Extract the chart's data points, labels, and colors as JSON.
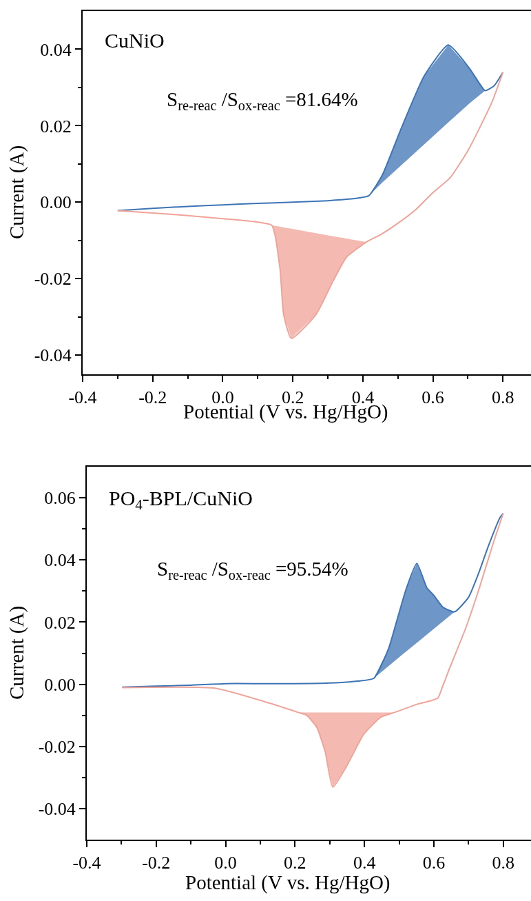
{
  "chart_data": [
    {
      "type": "line",
      "xlabel": "Potential (V vs. Hg/HgO)",
      "ylabel": "Current (A)",
      "annotations": [
        "CuNiO",
        "S$_{re-reac}$ /S$_{ox-reac}$ =81.64%"
      ],
      "xlim": [
        -0.4,
        0.88
      ],
      "ylim": [
        -0.045,
        0.05
      ],
      "xticks": [
        -0.4,
        -0.2,
        {
          "value": 0,
          "label": "0.0"
        },
        0.2,
        0.4,
        0.6,
        0.8,
        {
          "value": -0.3,
          "label": null
        },
        {
          "value": -0.1,
          "label": null
        },
        {
          "value": 0.1,
          "label": null
        },
        {
          "value": 0.3,
          "label": null
        },
        {
          "value": 0.5,
          "label": null
        },
        {
          "value": 0.7,
          "label": null
        }
      ],
      "yticks": [
        -0.04,
        -0.02,
        {
          "value": 0,
          "label": "0.00"
        },
        0.02,
        0.04,
        {
          "value": -0.03,
          "label": null
        },
        {
          "value": -0.01,
          "label": null
        },
        {
          "value": 0.01,
          "label": null
        },
        {
          "value": 0.03,
          "label": null
        }
      ],
      "marker": "none",
      "line_style": "solid",
      "series": [
        {
          "color": "#3d74b6",
          "x": [
            -0.3,
            -0.2,
            -0.1,
            0.0,
            0.1,
            0.2,
            0.3,
            0.38,
            0.417,
            0.456,
            0.509,
            0.575,
            0.644,
            0.706,
            0.749,
            0.775,
            0.8
          ],
          "values": [
            -0.0022,
            -0.0016,
            -0.0011,
            -0.0007,
            -0.0003,
            0.0,
            0.0004,
            0.001,
            0.0017,
            0.0072,
            0.0192,
            0.033,
            0.0411,
            0.0348,
            0.0292,
            0.0305,
            0.034
          ],
          "lower": [
            null,
            null,
            null,
            null,
            null,
            null,
            null,
            null,
            0.0017,
            0.0052,
            0.0096,
            0.0151,
            0.0209,
            0.026,
            0.0292,
            null,
            null
          ],
          "upper": [
            null,
            null,
            null,
            null,
            null,
            null,
            null,
            null,
            0.0017,
            0.0072,
            0.0192,
            0.033,
            0.0411,
            0.0348,
            0.0292,
            null,
            null
          ]
        },
        {
          "color": "#f0a398",
          "x": [
            0.8,
            0.77,
            0.732,
            0.7,
            0.65,
            0.6,
            0.55,
            0.5,
            0.45,
            0.41,
            0.353,
            0.315,
            0.266,
            0.196,
            0.174,
            0.164,
            0.15,
            0.14,
            0.1,
            0.0,
            -0.1,
            -0.2,
            -0.3
          ],
          "values": [
            0.034,
            0.0265,
            0.0192,
            0.0135,
            0.0065,
            0.0025,
            -0.002,
            -0.0055,
            -0.0085,
            -0.0104,
            -0.0144,
            -0.0206,
            -0.0294,
            -0.0356,
            -0.0294,
            -0.0178,
            -0.0089,
            -0.006,
            -0.0052,
            -0.0043,
            -0.0035,
            -0.0028,
            -0.0022
          ],
          "lower": [
            null,
            null,
            null,
            null,
            null,
            null,
            null,
            null,
            null,
            -0.0104,
            -0.0144,
            -0.0206,
            -0.0294,
            -0.0356,
            -0.0294,
            -0.0178,
            -0.0089,
            -0.006,
            null,
            null,
            null,
            null,
            null
          ],
          "upper": [
            null,
            null,
            null,
            null,
            null,
            null,
            null,
            null,
            null,
            -0.0104,
            -0.0095,
            -0.0089,
            -0.0081,
            -0.0069,
            -0.0066,
            -0.0064,
            -0.0062,
            -0.006,
            null,
            null,
            null,
            null,
            null
          ]
        }
      ]
    },
    {
      "type": "line",
      "xlabel": "Potential (V vs. Hg/HgO)",
      "ylabel": "Current (A)",
      "annotations": [
        "PO$_{4}$-BPL/CuNiO",
        "S$_{re-reac}$ /S$_{ox-reac}$ =95.54%"
      ],
      "xlim": [
        -0.4,
        0.88
      ],
      "ylim": [
        -0.05,
        0.07
      ],
      "xticks": [
        -0.4,
        -0.2,
        {
          "value": 0,
          "label": "0.0"
        },
        0.2,
        0.4,
        0.6,
        0.8,
        {
          "value": -0.3,
          "label": null
        },
        {
          "value": -0.1,
          "label": null
        },
        {
          "value": 0.1,
          "label": null
        },
        {
          "value": 0.3,
          "label": null
        },
        {
          "value": 0.5,
          "label": null
        },
        {
          "value": 0.7,
          "label": null
        }
      ],
      "yticks": [
        -0.04,
        -0.02,
        {
          "value": 0,
          "label": "0.00"
        },
        0.02,
        0.04,
        0.06,
        {
          "value": -0.03,
          "label": null
        },
        {
          "value": -0.01,
          "label": null
        },
        {
          "value": 0.01,
          "label": null
        },
        {
          "value": 0.03,
          "label": null
        },
        {
          "value": 0.05,
          "label": null
        }
      ],
      "marker": "none",
      "line_style": "solid",
      "series": [
        {
          "color": "#3d74b6",
          "x": [
            -0.298,
            -0.2,
            -0.1,
            0.0,
            0.1,
            0.2,
            0.3,
            0.38,
            0.427,
            0.469,
            0.495,
            0.521,
            0.551,
            0.58,
            0.6,
            0.626,
            0.66,
            0.7,
            0.73,
            0.757,
            0.79,
            0.8
          ],
          "values": [
            -0.0009,
            -0.0006,
            -0.0003,
            0.0002,
            0.0002,
            0.0002,
            0.0004,
            0.001,
            0.0019,
            0.0113,
            0.0211,
            0.0309,
            0.0389,
            0.031,
            0.0286,
            0.0248,
            0.0233,
            0.028,
            0.036,
            0.0444,
            0.0535,
            0.055
          ],
          "lower": [
            null,
            null,
            null,
            null,
            null,
            null,
            null,
            null,
            0.0019,
            0.0058,
            0.0082,
            0.0106,
            0.0133,
            0.016,
            0.0178,
            0.0202,
            0.0233,
            null,
            null,
            null,
            null,
            null
          ],
          "upper": [
            null,
            null,
            null,
            null,
            null,
            null,
            null,
            null,
            0.0019,
            0.0113,
            0.0211,
            0.0309,
            0.0389,
            0.031,
            0.0286,
            0.0248,
            0.0233,
            null,
            null,
            null,
            null,
            null
          ]
        },
        {
          "color": "#f0a398",
          "x": [
            0.8,
            0.77,
            0.731,
            0.692,
            0.646,
            0.625,
            0.611,
            0.55,
            0.486,
            0.447,
            0.398,
            0.35,
            0.309,
            0.287,
            0.263,
            0.234,
            0.21,
            0.127,
            -0.028,
            -0.298
          ],
          "values": [
            0.055,
            0.045,
            0.0309,
            0.0181,
            0.0053,
            -0.0008,
            -0.0045,
            -0.0065,
            -0.0091,
            -0.0106,
            -0.0161,
            -0.0261,
            -0.0331,
            -0.0217,
            -0.0139,
            -0.01,
            -0.0091,
            -0.0061,
            -0.0013,
            -0.0011
          ],
          "lower": [
            null,
            null,
            null,
            null,
            null,
            null,
            null,
            null,
            -0.0091,
            -0.0106,
            -0.0161,
            -0.0261,
            -0.0331,
            -0.0217,
            -0.0139,
            -0.01,
            -0.0091,
            null,
            null,
            null
          ],
          "upper": [
            null,
            null,
            null,
            null,
            null,
            null,
            null,
            null,
            -0.0091,
            -0.0091,
            -0.0091,
            -0.0091,
            -0.0091,
            -0.0091,
            -0.0091,
            -0.0091,
            -0.0091,
            null,
            null,
            null
          ]
        }
      ]
    }
  ]
}
